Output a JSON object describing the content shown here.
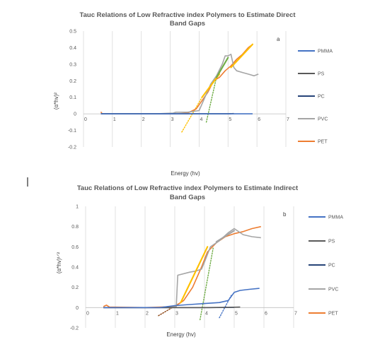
{
  "chart_data": [
    {
      "type": "line",
      "panel_label": "a",
      "title_lines": [
        "Tauc Relations of Low Refractive index Polymers to Estimate Direct",
        "Band Gaps"
      ],
      "xlabel": "Energy (hv)",
      "ylabel": "(α*hv)²",
      "xlim": [
        0,
        7
      ],
      "ylim": [
        -0.2,
        0.5
      ],
      "x_ticks": [
        0,
        1,
        2,
        3,
        4,
        5,
        6,
        7
      ],
      "y_ticks": [
        -0.2,
        -0.1,
        0,
        0.1,
        0.2,
        0.3,
        0.4,
        0.5
      ],
      "y_tick_labels": [
        "-0.2",
        "-0.1",
        "0",
        "0.1",
        "0.2",
        "0.3",
        "0.4",
        "0.5"
      ],
      "grid": "vertical",
      "legend": "right",
      "series": [
        {
          "name": "PMMA",
          "color": "#4472C4",
          "x": [
            0.6,
            4.0,
            4.5,
            5.0,
            5.5,
            5.85
          ],
          "y": [
            0,
            0,
            0,
            0,
            0,
            0
          ]
        },
        {
          "name": "PS",
          "color": "#595959",
          "x": [
            0.6,
            4.2,
            4.6,
            5.0,
            5.2
          ],
          "y": [
            0,
            0,
            0,
            0,
            0.002
          ]
        },
        {
          "name": "PC",
          "color": "#264478",
          "x": [
            0.6,
            3.8,
            4.3,
            4.9,
            5.1
          ],
          "y": [
            0,
            0,
            0,
            0,
            0.001
          ]
        },
        {
          "name": "PVC",
          "color": "#A5A5A5",
          "x": [
            0.6,
            2.5,
            3.1,
            3.2,
            3.6,
            4.0,
            4.2,
            4.4,
            4.6,
            4.8,
            4.9,
            5.0,
            5.1,
            5.2,
            5.3,
            5.5,
            5.7,
            5.9,
            6.05
          ],
          "y": [
            0,
            0,
            0.005,
            0.01,
            0.01,
            0.02,
            0.1,
            0.18,
            0.23,
            0.3,
            0.35,
            0.35,
            0.36,
            0.28,
            0.26,
            0.25,
            0.24,
            0.23,
            0.24
          ]
        },
        {
          "name": "PET",
          "color": "#ED7D31",
          "x": [
            0.6,
            0.65,
            0.7,
            3.2,
            3.6,
            3.9,
            4.1,
            4.3,
            4.5,
            4.7,
            4.9,
            5.1,
            5.3,
            5.5,
            5.7,
            5.85
          ],
          "y": [
            0.012,
            0,
            0,
            0,
            0.005,
            0.03,
            0.08,
            0.13,
            0.2,
            0.22,
            0.26,
            0.29,
            0.33,
            0.36,
            0.4,
            0.42
          ]
        }
      ],
      "fit_lines": [
        {
          "color": "#FFC000",
          "style": "solid",
          "x": [
            4.1,
            4.7
          ],
          "y": [
            0.1,
            0.24
          ]
        },
        {
          "color": "#FFC000",
          "style": "dotted",
          "x": [
            3.4,
            4.1
          ],
          "y": [
            -0.11,
            0.1
          ]
        },
        {
          "color": "#FFC000",
          "style": "solid",
          "x": [
            5.1,
            5.85
          ],
          "y": [
            0.28,
            0.42
          ]
        },
        {
          "color": "#70AD47",
          "style": "solid",
          "x": [
            4.6,
            5.0
          ],
          "y": [
            0.22,
            0.34
          ]
        },
        {
          "color": "#70AD47",
          "style": "dotted",
          "x": [
            4.25,
            4.6
          ],
          "y": [
            -0.05,
            0.22
          ]
        }
      ]
    },
    {
      "type": "line",
      "panel_label": "b",
      "title_lines": [
        "Tauc Relations of Low Refractive index Polymers to Estimate Indirect",
        "Band Gaps"
      ],
      "xlabel": "Energy (hv)",
      "ylabel": "(α*hv)¹ᐟ²",
      "xlim": [
        0,
        7
      ],
      "ylim": [
        -0.2,
        1
      ],
      "x_ticks": [
        0,
        1,
        2,
        3,
        4,
        5,
        6,
        7
      ],
      "y_ticks": [
        -0.2,
        0,
        0.2,
        0.4,
        0.6,
        0.8,
        1
      ],
      "y_tick_labels": [
        "-0.2",
        "0",
        "0.2",
        "0.4",
        "0.6",
        "0.8",
        "1"
      ],
      "grid": "vertical",
      "legend": "right",
      "series": [
        {
          "name": "PMMA",
          "color": "#4472C4",
          "x": [
            0.6,
            2.5,
            3.0,
            3.5,
            4.0,
            4.5,
            4.8,
            5.0,
            5.2,
            5.5,
            5.85
          ],
          "y": [
            0,
            0,
            0.02,
            0.03,
            0.04,
            0.05,
            0.07,
            0.15,
            0.17,
            0.18,
            0.19
          ]
        },
        {
          "name": "PS",
          "color": "#595959",
          "x": [
            0.6,
            4.2,
            4.8,
            5.2
          ],
          "y": [
            0,
            0,
            0.002,
            0.005
          ]
        },
        {
          "name": "PC",
          "color": "#264478",
          "x": [
            0.6,
            4.0,
            4.6,
            5.0
          ],
          "y": [
            0,
            0,
            0.001,
            0.003
          ]
        },
        {
          "name": "PVC",
          "color": "#A5A5A5",
          "x": [
            0.6,
            2.8,
            3.05,
            3.1,
            3.5,
            3.7,
            3.9,
            4.0,
            4.2,
            4.5,
            4.8,
            5.0,
            5.1,
            5.3,
            5.6,
            5.9
          ],
          "y": [
            0,
            0,
            0.01,
            0.32,
            0.35,
            0.36,
            0.38,
            0.45,
            0.6,
            0.66,
            0.74,
            0.78,
            0.76,
            0.72,
            0.7,
            0.69
          ]
        },
        {
          "name": "PET",
          "color": "#ED7D31",
          "x": [
            0.6,
            0.7,
            0.8,
            2.0,
            3.0,
            3.3,
            3.6,
            3.9,
            4.1,
            4.4,
            4.7,
            5.0,
            5.3,
            5.6,
            5.9
          ],
          "y": [
            0.01,
            0.025,
            0.005,
            0,
            0.01,
            0.07,
            0.2,
            0.4,
            0.55,
            0.64,
            0.7,
            0.73,
            0.75,
            0.78,
            0.8
          ]
        }
      ],
      "fit_lines": [
        {
          "color": "#FFC000",
          "style": "solid",
          "x": [
            3.2,
            4.1
          ],
          "y": [
            0.05,
            0.6
          ]
        },
        {
          "color": "#8B4513",
          "style": "dotted",
          "x": [
            2.45,
            3.2
          ],
          "y": [
            -0.08,
            0.05
          ]
        },
        {
          "color": "#70AD47",
          "style": "dotted",
          "x": [
            3.85,
            4.3
          ],
          "y": [
            -0.12,
            0.6
          ]
        },
        {
          "color": "#A5A5A5",
          "style": "solid",
          "x": [
            4.4,
            5.0
          ],
          "y": [
            0.65,
            0.76
          ]
        },
        {
          "color": "#4472C4",
          "style": "dotted",
          "x": [
            4.5,
            4.9
          ],
          "y": [
            -0.1,
            0.12
          ]
        }
      ]
    }
  ]
}
